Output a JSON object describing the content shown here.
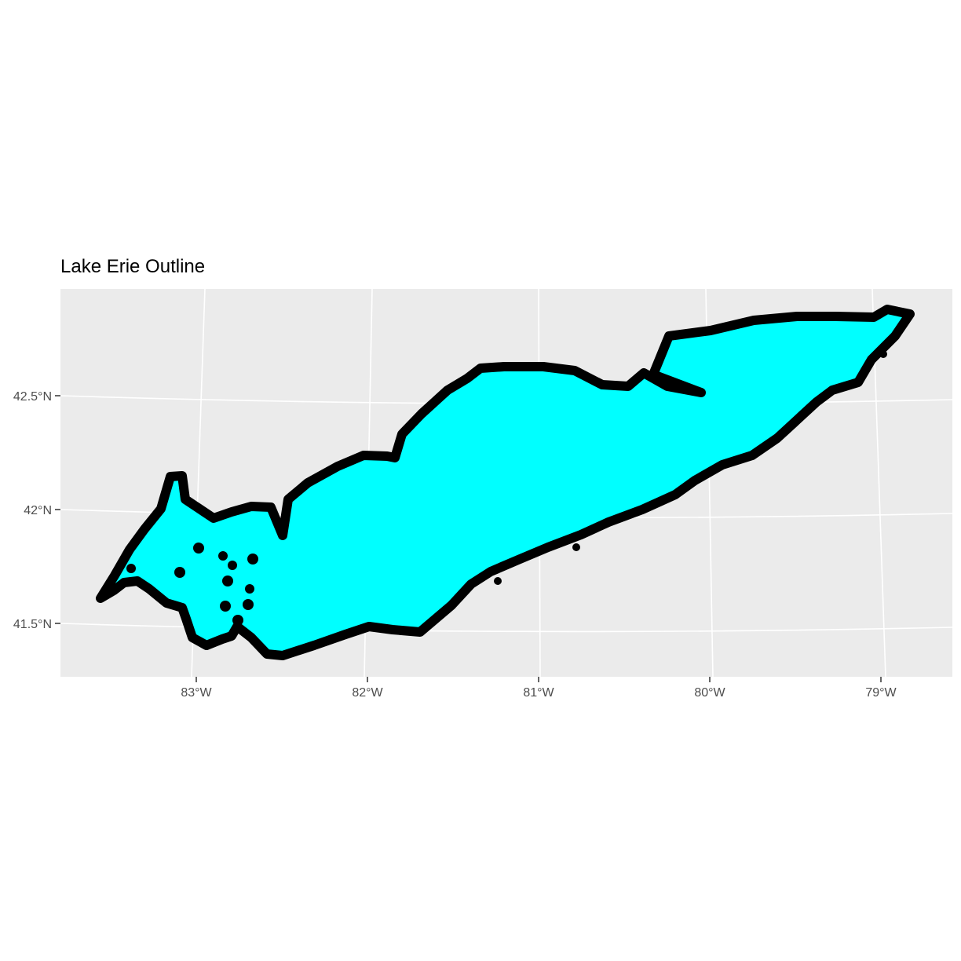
{
  "title": "Lake Erie Outline",
  "colors": {
    "panel_background": "#ebebeb",
    "graticule": "#ffffff",
    "lake_fill": "#00ffff",
    "lake_outline": "#000000",
    "axis_text": "#4d4d4d"
  },
  "axes": {
    "x_tick_labels": [
      "83°W",
      "82°W",
      "81°W",
      "80°W",
      "79°W"
    ],
    "y_tick_labels": [
      "42.5°N",
      "42°N",
      "41.5°N"
    ]
  },
  "chart_data": {
    "type": "map",
    "title": "Lake Erie Outline",
    "feature": "Lake Erie",
    "projection": "conic (curved graticule)",
    "lon_ticks": [
      -83,
      -82,
      -81,
      -80,
      -79
    ],
    "lat_ticks": [
      42.5,
      42.0,
      41.5
    ],
    "extent": {
      "lon": [
        -83.55,
        -78.85
      ],
      "lat": [
        41.35,
        42.9
      ]
    },
    "grid": true
  }
}
